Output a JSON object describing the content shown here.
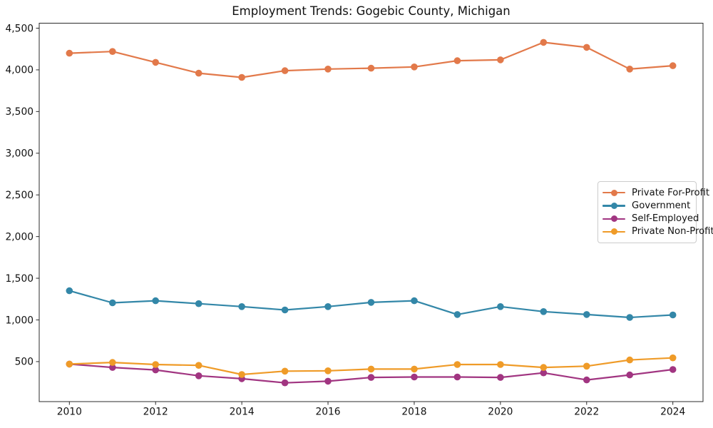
{
  "chart_data": {
    "type": "line",
    "title": "Employment Trends: Gogebic County, Michigan",
    "xlabel": "",
    "ylabel": "",
    "x": [
      2010,
      2011,
      2012,
      2013,
      2014,
      2015,
      2016,
      2017,
      2018,
      2019,
      2020,
      2021,
      2022,
      2023,
      2024
    ],
    "series": [
      {
        "name": "Private For-Profit",
        "color": "#e2794a",
        "values": [
          4200,
          4220,
          4090,
          3960,
          3910,
          3990,
          4010,
          4020,
          4035,
          4110,
          4120,
          4330,
          4270,
          4010,
          4050
        ]
      },
      {
        "name": "Government",
        "color": "#3387a8",
        "values": [
          1350,
          1205,
          1230,
          1195,
          1160,
          1120,
          1160,
          1210,
          1230,
          1065,
          1160,
          1100,
          1065,
          1030,
          1060
        ]
      },
      {
        "name": "Self-Employed",
        "color": "#a13581",
        "values": [
          470,
          430,
          400,
          330,
          295,
          245,
          265,
          310,
          315,
          315,
          310,
          365,
          280,
          340,
          405
        ]
      },
      {
        "name": "Private Non-Profit",
        "color": "#ef9b28",
        "values": [
          470,
          490,
          465,
          455,
          345,
          385,
          390,
          410,
          410,
          465,
          465,
          430,
          445,
          520,
          545
        ]
      }
    ],
    "xticks": [
      2010,
      2012,
      2014,
      2016,
      2018,
      2020,
      2022,
      2024
    ],
    "xtick_labels": [
      "2010",
      "2012",
      "2014",
      "2016",
      "2018",
      "2020",
      "2022",
      "2024"
    ],
    "yticks": [
      500,
      1000,
      1500,
      2000,
      2500,
      3000,
      3500,
      4000,
      4500
    ],
    "ytick_labels": [
      "500",
      "1,000",
      "1,500",
      "2,000",
      "2,500",
      "3,000",
      "3,500",
      "4,000",
      "4,500"
    ],
    "xlim": [
      2009.3,
      2024.7
    ],
    "ylim": [
      20,
      4560
    ],
    "grid": false,
    "legend_position": "center right",
    "axis_color": "#2b2b2b",
    "tick_label_color": "#111111",
    "line_width": 2.2,
    "marker_radius": 4.8
  }
}
